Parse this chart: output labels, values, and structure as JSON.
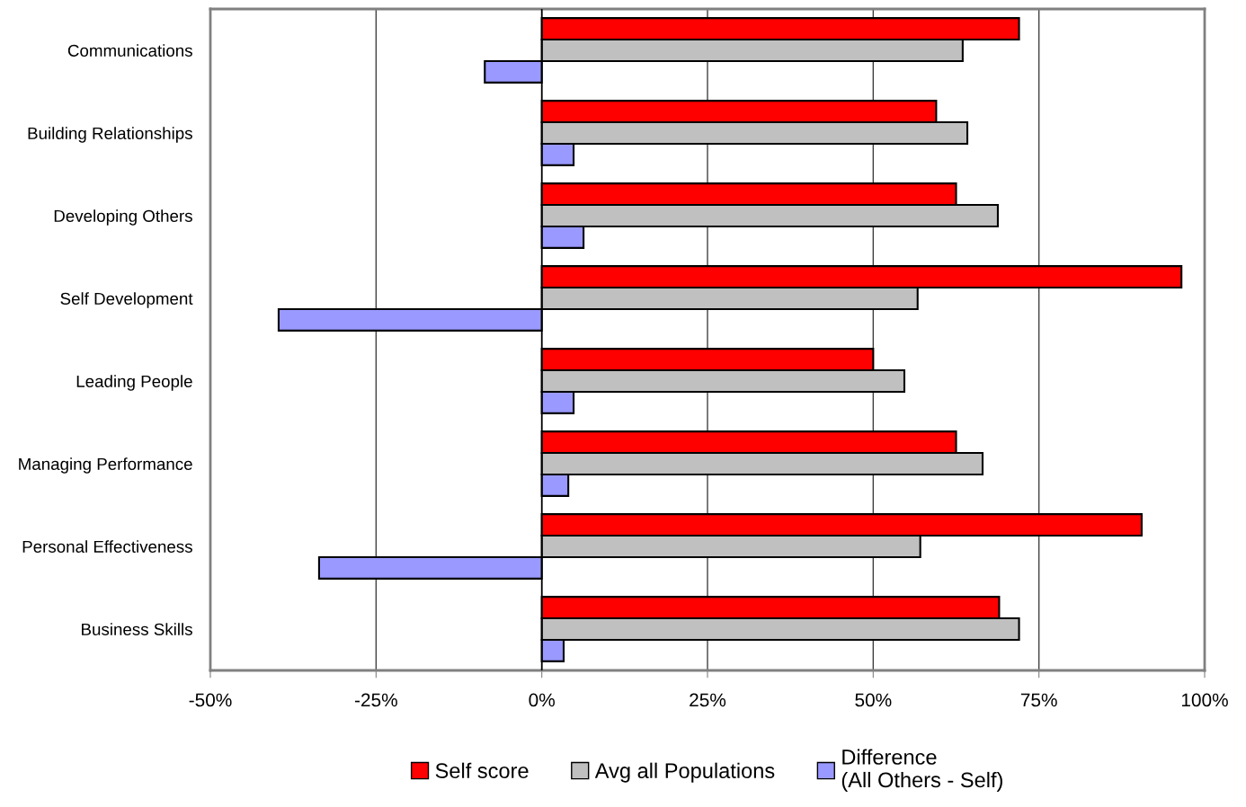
{
  "chart_data": {
    "type": "bar",
    "orientation": "horizontal",
    "categories": [
      "Communications",
      "Building Relationships",
      "Developing Others",
      "Self Development",
      "Leading People",
      "Managing Performance",
      "Personal Effectiveness",
      "Business Skills"
    ],
    "series": [
      {
        "name": "Self score",
        "color": "#ff0000",
        "values": [
          72,
          59.5,
          62.5,
          96.5,
          50,
          62.5,
          90.5,
          69
        ]
      },
      {
        "name": "Avg all Populations",
        "color": "#c0c0c0",
        "values": [
          63.5,
          64.2,
          68.8,
          56.7,
          54.7,
          66.5,
          57.1,
          72
        ]
      },
      {
        "name": "Difference\n(All Others - Self)",
        "color": "#9999ff",
        "values": [
          -8.6,
          4.8,
          6.3,
          -39.7,
          4.8,
          4,
          -33.6,
          3.3
        ]
      }
    ],
    "xlim": [
      -50,
      100
    ],
    "xticks": [
      {
        "value": -50,
        "label": "-50%"
      },
      {
        "value": -25,
        "label": "-25%"
      },
      {
        "value": 0,
        "label": "0%"
      },
      {
        "value": 25,
        "label": "25%"
      },
      {
        "value": 50,
        "label": "50%"
      },
      {
        "value": 75,
        "label": "75%"
      },
      {
        "value": 100,
        "label": "100%"
      }
    ],
    "grid": "x",
    "legend": "bottom"
  }
}
